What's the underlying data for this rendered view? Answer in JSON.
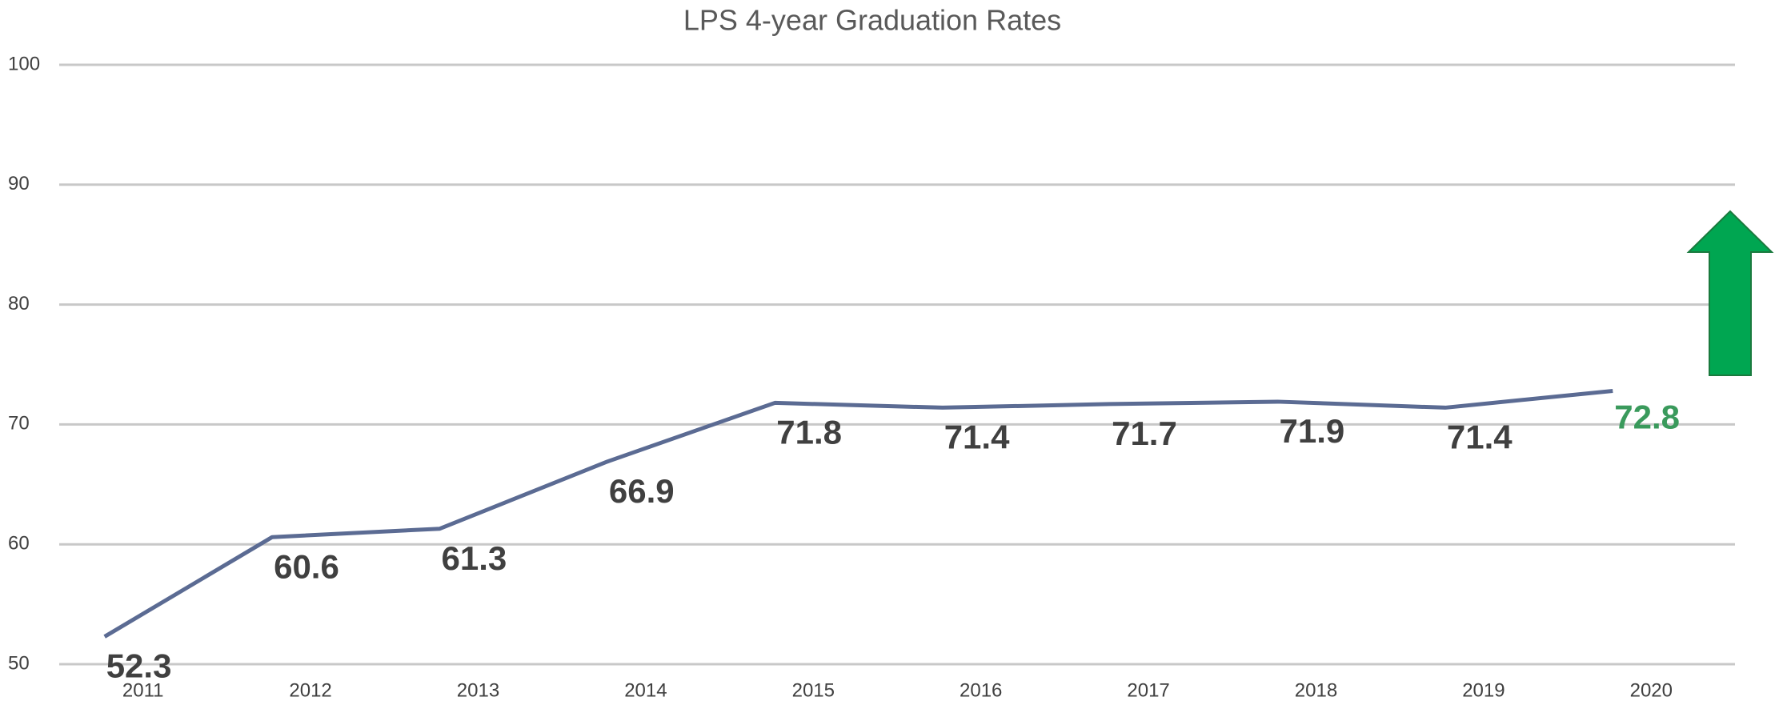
{
  "chart_data": {
    "type": "line",
    "title": "LPS 4-year Graduation Rates",
    "categories": [
      "2011",
      "2012",
      "2013",
      "2014",
      "2015",
      "2016",
      "2017",
      "2018",
      "2019",
      "2020"
    ],
    "values": [
      52.3,
      60.6,
      61.3,
      66.9,
      71.8,
      71.4,
      71.7,
      71.9,
      71.4,
      72.8
    ],
    "color": "#5b6b93",
    "highlight_color": "#3a9a5c",
    "ylim": [
      50,
      100
    ],
    "yticks": [
      50,
      60,
      70,
      80,
      90,
      100
    ],
    "grid": true
  }
}
